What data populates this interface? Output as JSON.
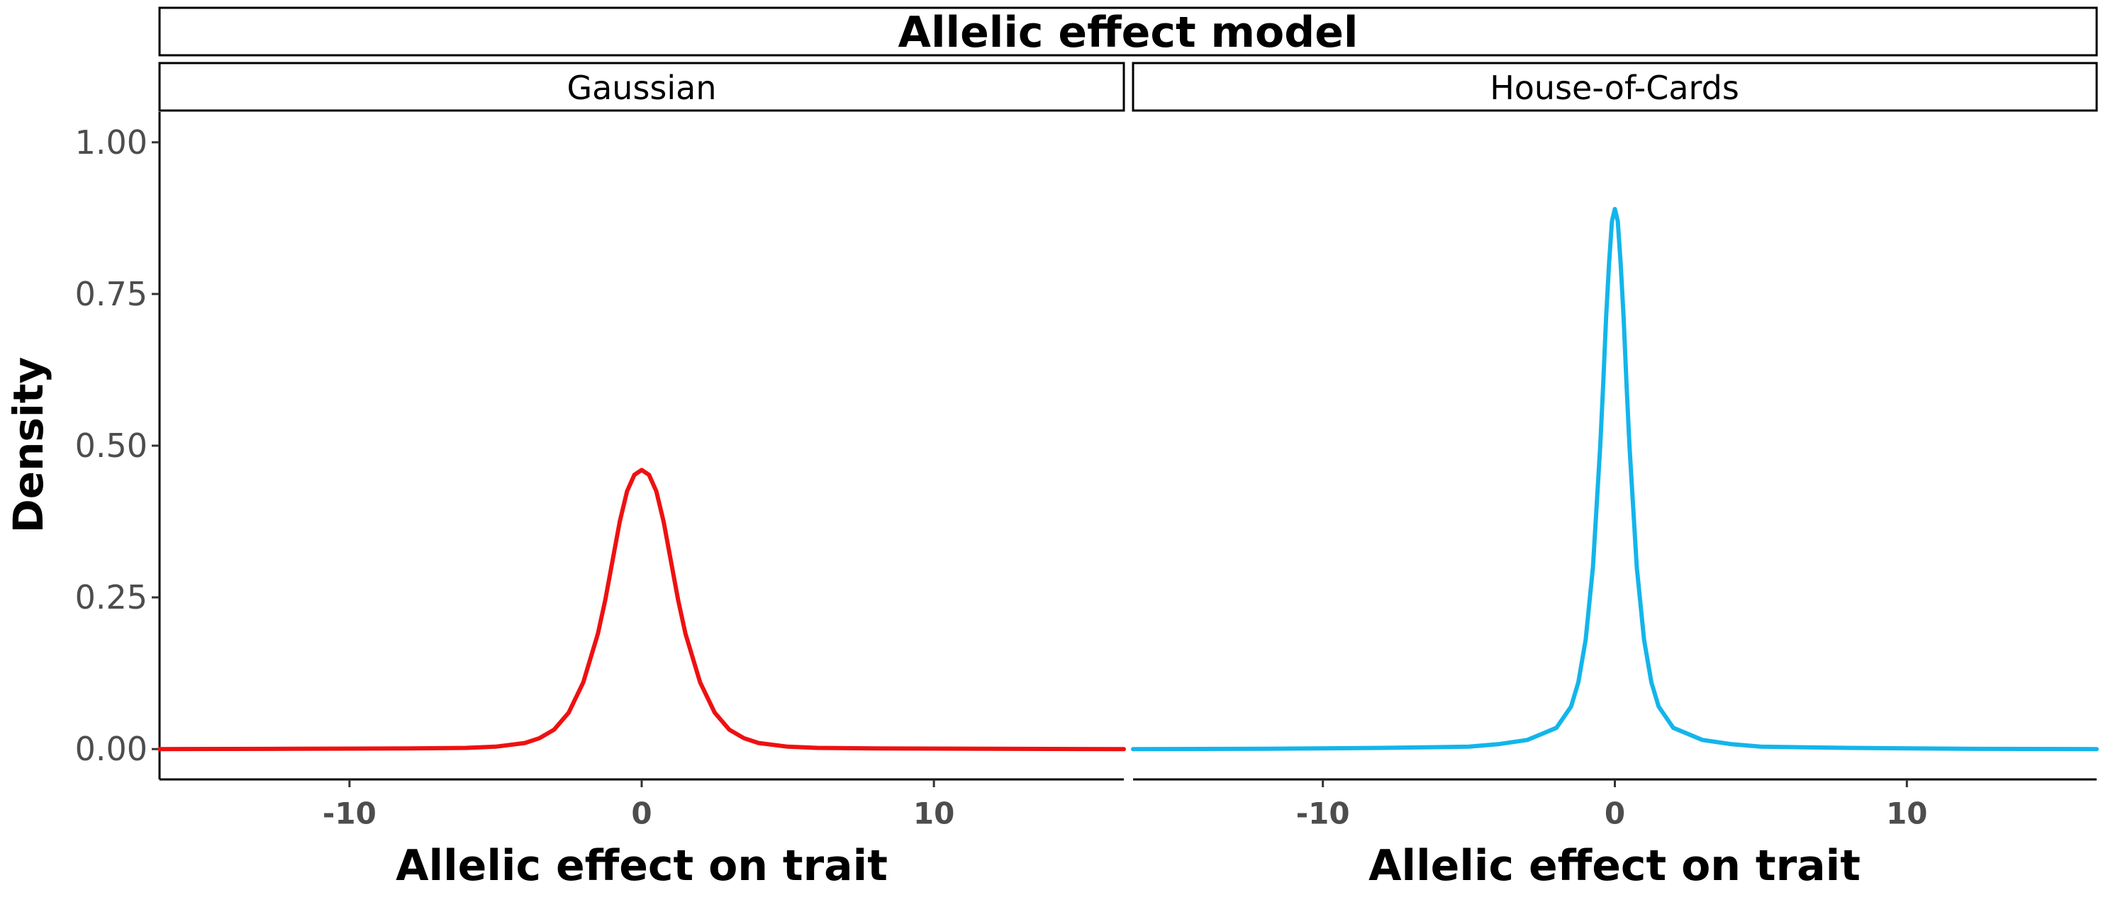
{
  "chart_data": {
    "type": "line",
    "title": "Allelic effect model",
    "xlabel": "Allelic effect on trait",
    "ylabel": "Density",
    "xlim": [
      -16.5,
      16.5
    ],
    "ylim": [
      -0.05,
      1.05
    ],
    "x_ticks": [
      -10,
      0,
      10
    ],
    "x_tick_labels": [
      "-10",
      "0",
      "10"
    ],
    "y_ticks": [
      0.0,
      0.25,
      0.5,
      0.75,
      1.0
    ],
    "y_tick_labels": [
      "0.00",
      "0.25",
      "0.50",
      "0.75",
      "1.00"
    ],
    "grid": false,
    "legend": "none",
    "panels": [
      {
        "name": "Gaussian",
        "color": "#ee1111",
        "series": {
          "x": [
            -16.5,
            -12,
            -8,
            -6,
            -5,
            -4,
            -3.5,
            -3,
            -2.5,
            -2,
            -1.5,
            -1.25,
            -1,
            -0.75,
            -0.5,
            -0.25,
            0,
            0.25,
            0.5,
            0.75,
            1,
            1.25,
            1.5,
            2,
            2.5,
            3,
            3.5,
            4,
            5,
            6,
            8,
            12,
            16.5
          ],
          "y": [
            0.0,
            0.0005,
            0.001,
            0.002,
            0.004,
            0.01,
            0.018,
            0.032,
            0.06,
            0.11,
            0.19,
            0.245,
            0.31,
            0.375,
            0.425,
            0.452,
            0.46,
            0.452,
            0.425,
            0.375,
            0.31,
            0.245,
            0.19,
            0.11,
            0.06,
            0.032,
            0.018,
            0.01,
            0.004,
            0.002,
            0.001,
            0.0005,
            0.0
          ]
        }
      },
      {
        "name": "House-of-Cards",
        "color": "#13b5ea",
        "series": {
          "x": [
            -16.5,
            -12,
            -8,
            -5,
            -4,
            -3,
            -2,
            -1.5,
            -1.25,
            -1,
            -0.75,
            -0.5,
            -0.4,
            -0.3,
            -0.2,
            -0.1,
            0,
            0.1,
            0.2,
            0.3,
            0.4,
            0.5,
            0.75,
            1,
            1.25,
            1.5,
            2,
            3,
            4,
            5,
            8,
            12,
            16.5
          ],
          "y": [
            0.0,
            0.0005,
            0.002,
            0.004,
            0.008,
            0.015,
            0.035,
            0.07,
            0.11,
            0.18,
            0.3,
            0.5,
            0.6,
            0.71,
            0.8,
            0.87,
            0.89,
            0.87,
            0.8,
            0.71,
            0.6,
            0.5,
            0.3,
            0.18,
            0.11,
            0.07,
            0.035,
            0.015,
            0.008,
            0.004,
            0.002,
            0.0005,
            0.0
          ]
        }
      }
    ]
  }
}
